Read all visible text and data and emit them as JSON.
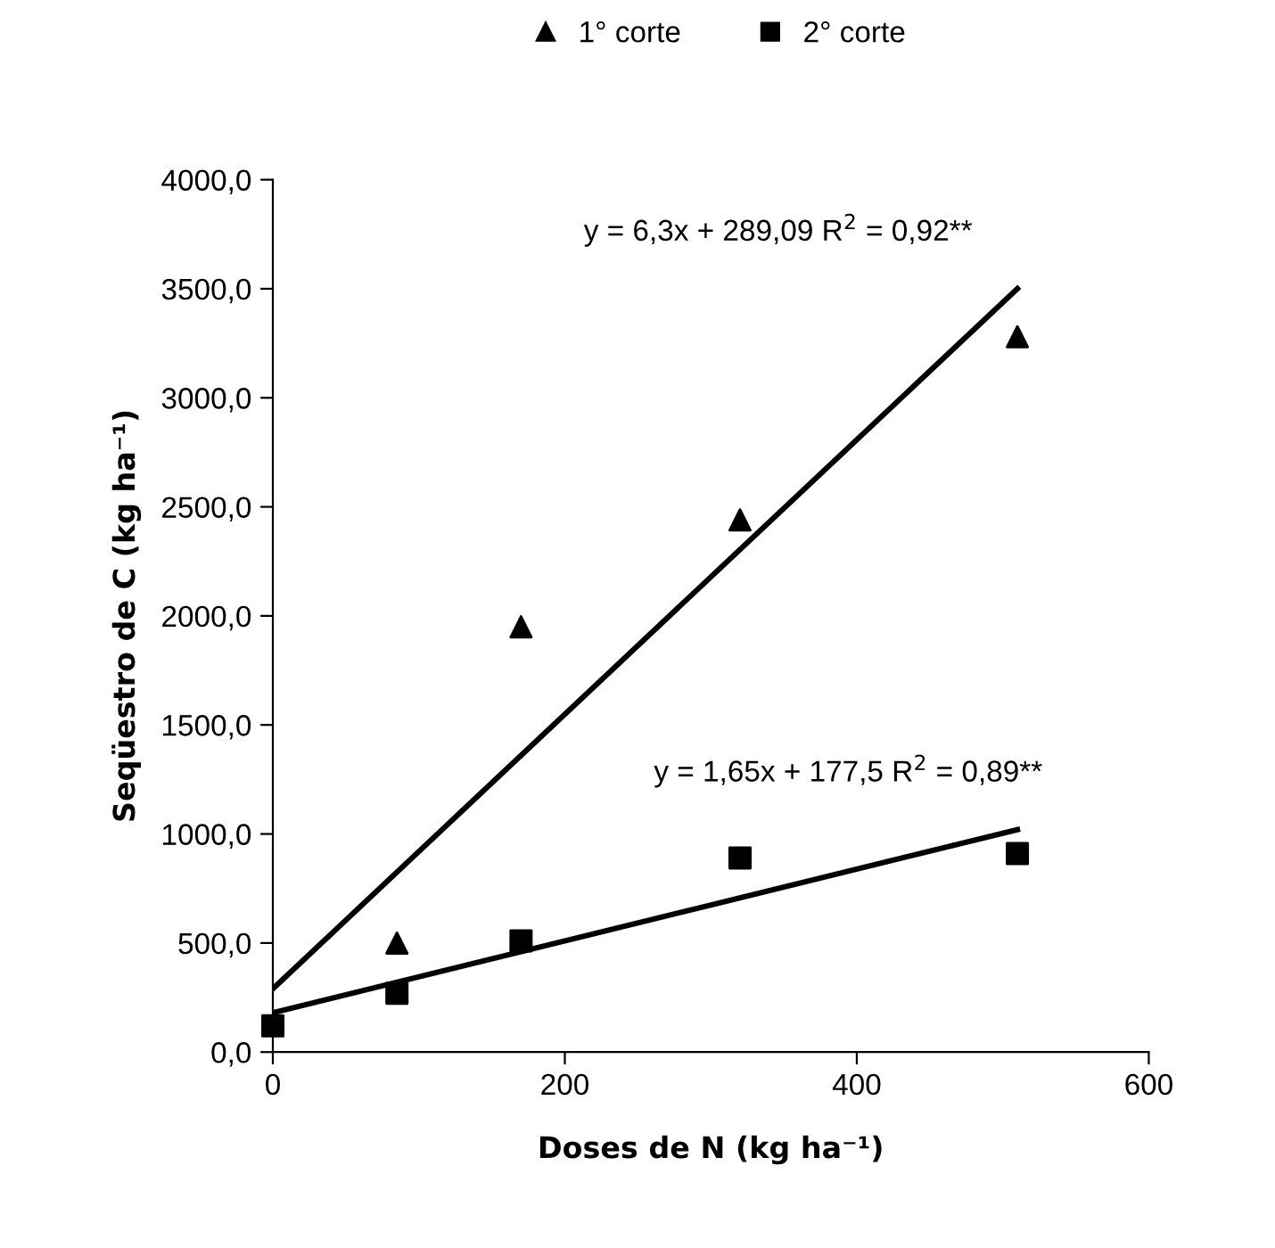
{
  "chart_data": {
    "type": "scatter",
    "xlabel": "Doses de N (kg ha⁻¹)",
    "ylabel": "Seqüestro de C (kg ha⁻¹)",
    "xlim": [
      0,
      600
    ],
    "xticks": [
      0,
      200,
      400,
      600
    ],
    "ylim": [
      0,
      4000
    ],
    "yticks": [
      {
        "value": 0,
        "label": "0,0"
      },
      {
        "value": 500,
        "label": "500,0"
      },
      {
        "value": 1000,
        "label": "1000,0"
      },
      {
        "value": 1500,
        "label": "1500,0"
      },
      {
        "value": 2000,
        "label": "2000,0"
      },
      {
        "value": 2500,
        "label": "2500,0"
      },
      {
        "value": 3000,
        "label": "3000,0"
      },
      {
        "value": 3500,
        "label": "3500,0"
      },
      {
        "value": 4000,
        "label": "4000,0"
      }
    ],
    "grid": false,
    "legend": "top",
    "series": [
      {
        "name": "1° corte",
        "color": "#000000",
        "marker": "triangle",
        "x": [
          85,
          170,
          320,
          510
        ],
        "values": [
          500,
          1950,
          2440,
          3280
        ]
      },
      {
        "name": "2° corte",
        "color": "#000000",
        "marker": "square",
        "x": [
          0,
          85,
          170,
          320,
          510
        ],
        "values": [
          120,
          270,
          510,
          890,
          910
        ]
      },
      {
        "type": "line",
        "color": "#000000",
        "marker": "none",
        "x": [
          0,
          510
        ],
        "values": [
          290,
          3500
        ]
      },
      {
        "type": "line",
        "color": "#000000",
        "marker": "none",
        "x": [
          0,
          510
        ],
        "values": [
          180,
          1020
        ]
      }
    ],
    "annotations": [
      "y = 6,3x + 289,09 R$^{2}$ = 0,92**",
      "y = 1,65x + 177,5 R$^{2}$ = 0,89**"
    ]
  }
}
